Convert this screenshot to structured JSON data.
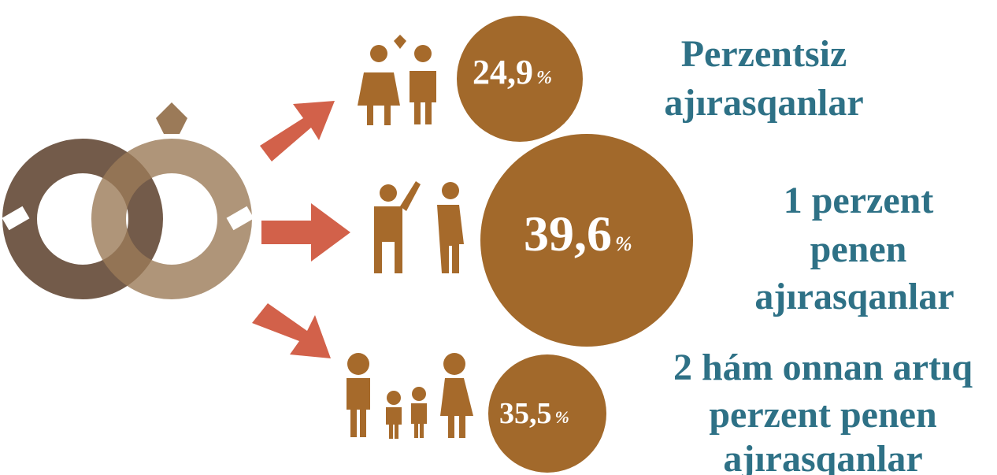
{
  "items": [
    {
      "value": "24,9",
      "unit": "%",
      "label": [
        "Perzentsiz",
        "ajırasqanlar"
      ]
    },
    {
      "value": "39,6",
      "unit": "%",
      "label": [
        "1 perzent",
        "penen",
        "ajırasqanlar"
      ]
    },
    {
      "value": "35,5",
      "unit": "%",
      "label": [
        "2 hám onnan artıq",
        "perzent penen",
        "ajırasqanlar"
      ]
    }
  ]
}
